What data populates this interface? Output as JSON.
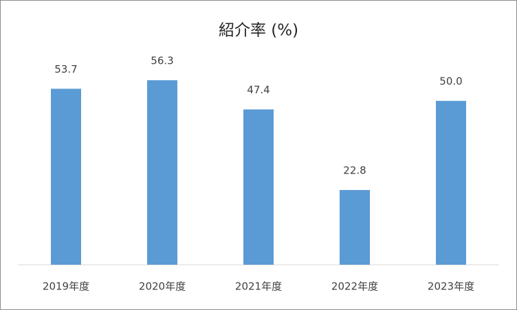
{
  "chart_data": {
    "type": "bar",
    "title": "紹介率 (%)",
    "categories": [
      "2019年度",
      "2020年度",
      "2021年度",
      "2022年度",
      "2023年度"
    ],
    "values": [
      53.7,
      56.3,
      47.4,
      22.8,
      50.0
    ],
    "value_labels": [
      "53.7",
      "56.3",
      "47.4",
      "22.8",
      "50.0"
    ],
    "color": "#5b9bd5"
  }
}
